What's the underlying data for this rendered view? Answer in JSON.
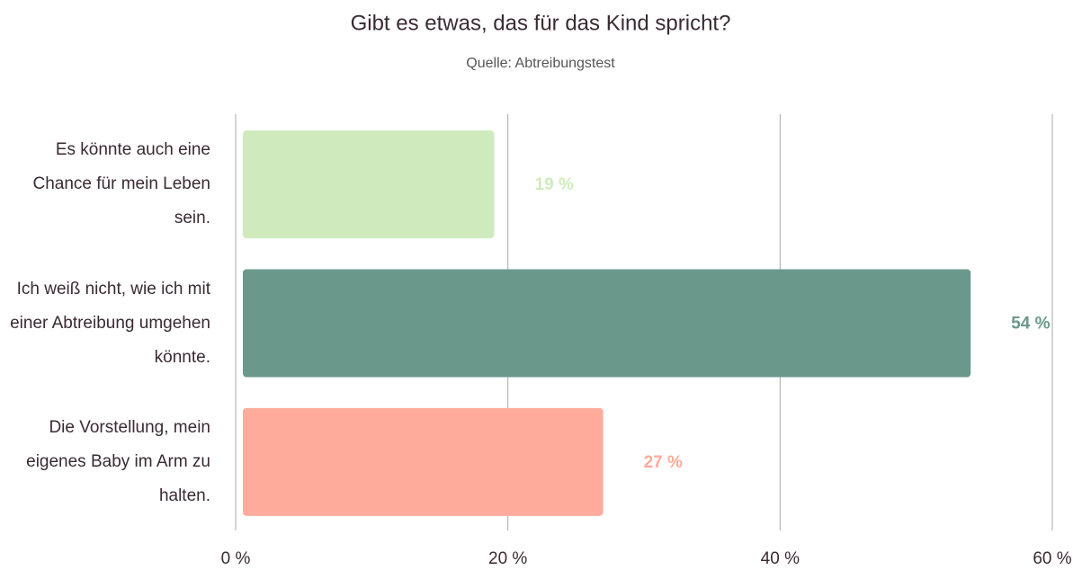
{
  "chart_data": {
    "type": "barh",
    "title": "Gibt es etwas, das für das Kind spricht?",
    "subtitle": "Quelle: Abtreibungstest",
    "categories": [
      "Es könnte auch eine Chance für mein Leben sein.",
      "Ich weiß nicht, wie ich mit einer Abtreibung umgehen könnte.",
      "Die Vorstellung, mein eigenes Baby im Arm zu halten."
    ],
    "values": [
      19,
      54,
      27
    ],
    "value_labels": [
      "19 %",
      "54 %",
      "27 %"
    ],
    "colors": [
      "#cfebbe",
      "#6a998c",
      "#ffab9b"
    ],
    "xlim": [
      0,
      60
    ],
    "xticks": [
      {
        "value": 0,
        "label": "0 %"
      },
      {
        "value": 20,
        "label": "20 %"
      },
      {
        "value": 40,
        "label": "40 %"
      },
      {
        "value": 60,
        "label": "60 %"
      }
    ],
    "grid": true
  }
}
